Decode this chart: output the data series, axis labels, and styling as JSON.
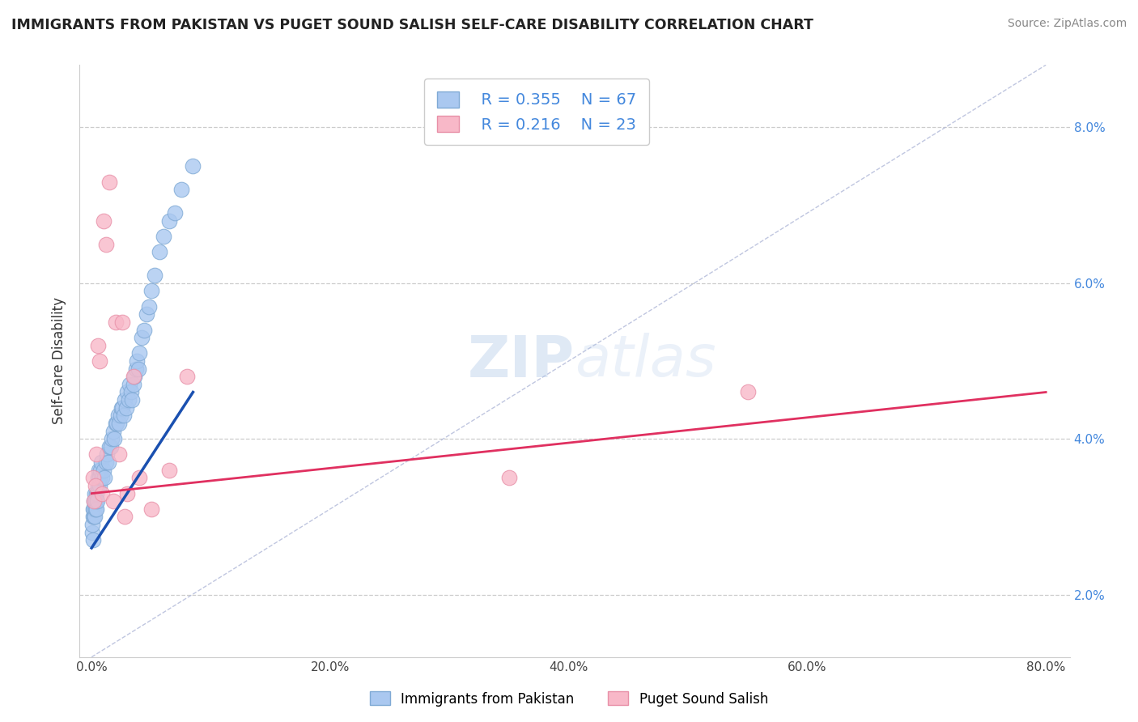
{
  "title": "IMMIGRANTS FROM PAKISTAN VS PUGET SOUND SALISH SELF-CARE DISABILITY CORRELATION CHART",
  "source": "Source: ZipAtlas.com",
  "xlabel_vals": [
    0.0,
    20.0,
    40.0,
    60.0,
    80.0
  ],
  "ylabel_vals": [
    2.0,
    4.0,
    6.0,
    8.0
  ],
  "xlim": [
    -1.0,
    82.0
  ],
  "ylim": [
    1.2,
    8.8
  ],
  "ylabel_label": "Self-Care Disability",
  "watermark_text": "ZIPatlas",
  "legend_blue_r": "R = 0.355",
  "legend_blue_n": "N = 67",
  "legend_pink_r": "R = 0.216",
  "legend_pink_n": "N = 23",
  "legend_label_blue": "Immigrants from Pakistan",
  "legend_label_pink": "Puget Sound Salish",
  "blue_color": "#aac8f0",
  "blue_edge": "#80aad5",
  "pink_color": "#f8b8c8",
  "pink_edge": "#e890a8",
  "blue_line_color": "#1a50b0",
  "pink_line_color": "#e03060",
  "ref_line_color": "#b0b8d8",
  "grid_color": "#cccccc",
  "blue_scatter_x": [
    0.05,
    0.08,
    0.1,
    0.12,
    0.15,
    0.18,
    0.2,
    0.22,
    0.25,
    0.28,
    0.3,
    0.32,
    0.35,
    0.38,
    0.4,
    0.45,
    0.5,
    0.55,
    0.6,
    0.65,
    0.7,
    0.75,
    0.8,
    0.9,
    1.0,
    1.1,
    1.2,
    1.3,
    1.4,
    1.5,
    1.6,
    1.7,
    1.8,
    1.9,
    2.0,
    2.1,
    2.2,
    2.3,
    2.4,
    2.5,
    2.6,
    2.7,
    2.8,
    2.9,
    3.0,
    3.1,
    3.2,
    3.3,
    3.4,
    3.5,
    3.6,
    3.7,
    3.8,
    3.9,
    4.0,
    4.2,
    4.4,
    4.6,
    4.8,
    5.0,
    5.3,
    5.7,
    6.0,
    6.5,
    7.0,
    7.5,
    8.5
  ],
  "blue_scatter_y": [
    2.8,
    2.9,
    3.0,
    2.7,
    3.1,
    3.0,
    3.2,
    3.1,
    3.3,
    3.0,
    3.2,
    3.1,
    3.2,
    3.1,
    3.3,
    3.2,
    3.4,
    3.5,
    3.6,
    3.4,
    3.5,
    3.6,
    3.7,
    3.5,
    3.6,
    3.5,
    3.7,
    3.8,
    3.7,
    3.9,
    3.9,
    4.0,
    4.1,
    4.0,
    4.2,
    4.2,
    4.3,
    4.2,
    4.3,
    4.4,
    4.4,
    4.3,
    4.5,
    4.4,
    4.6,
    4.5,
    4.7,
    4.6,
    4.5,
    4.7,
    4.8,
    4.9,
    5.0,
    4.9,
    5.1,
    5.3,
    5.4,
    5.6,
    5.7,
    5.9,
    6.1,
    6.4,
    6.6,
    6.8,
    6.9,
    7.2,
    7.5
  ],
  "pink_scatter_x": [
    0.1,
    0.2,
    0.3,
    0.4,
    0.5,
    0.7,
    0.9,
    1.0,
    1.2,
    1.5,
    1.8,
    2.0,
    2.3,
    2.6,
    3.0,
    3.5,
    4.0,
    5.0,
    6.5,
    8.0,
    35.0,
    55.0,
    2.8
  ],
  "pink_scatter_y": [
    3.5,
    3.2,
    3.4,
    3.8,
    5.2,
    5.0,
    3.3,
    6.8,
    6.5,
    7.3,
    3.2,
    5.5,
    3.8,
    5.5,
    3.3,
    4.8,
    3.5,
    3.1,
    3.6,
    4.8,
    3.5,
    4.6,
    3.0
  ],
  "blue_trend_x": [
    0.0,
    8.5
  ],
  "blue_trend_y": [
    2.6,
    4.6
  ],
  "pink_trend_x": [
    0.0,
    80.0
  ],
  "pink_trend_y": [
    3.3,
    4.6
  ],
  "ref_line_x": [
    0.0,
    80.0
  ],
  "ref_line_y": [
    1.2,
    8.8
  ]
}
